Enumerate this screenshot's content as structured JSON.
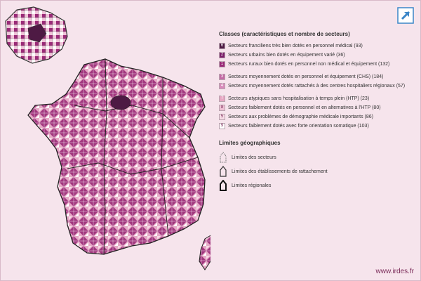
{
  "legend": {
    "title": "Classes (caractéristiques et nombre de secteurs)",
    "groups": [
      [
        {
          "num": "6",
          "label": "Secteurs franciliens très bien dotés en personnel médical (93)",
          "color": "#4e1a44"
        },
        {
          "num": "2",
          "label": "Secteurs urbains bien dotés en équipement varié (36)",
          "color": "#7c1f6a"
        },
        {
          "num": "1",
          "label": "Secteurs ruraux bien dotés en personnel non médical et équipement (132)",
          "color": "#9a2a78"
        }
      ],
      [
        {
          "num": "3",
          "label": "Secteurs moyennement dotés en personnel et équipement (CHS) (184)",
          "color": "#c46aa5"
        },
        {
          "num": "4",
          "label": "Secteurs moyennement dotés rattachés à des centres hospitaliers régionaux (57)",
          "color": "#d88bbb"
        }
      ],
      [
        {
          "num": "7",
          "label": "Secteurs atypiques sans hospitalisation à temps plein (HTP) (23)",
          "color": "#e7a7c3"
        },
        {
          "num": "8",
          "label": "Secteurs faiblement dotés en personnel et en alternatives à l'HTP (80)",
          "color": "#efc0d4"
        },
        {
          "num": "5",
          "label": "Secteurs aux problèmes de démographie médicale importants (86)",
          "color": "#f7dbe6"
        },
        {
          "num": "9",
          "label": "Secteurs faiblement dotés avec forte orientation somatique (103)",
          "color": "#ffffff"
        }
      ]
    ]
  },
  "geo": {
    "title": "Limites géographiques",
    "items": [
      "Limites des secteurs",
      "Limites des établissements de rattachement",
      "Limites régionales"
    ]
  },
  "site": "www.irdes.fr",
  "expand_icon": "expand-arrow-icon",
  "colors": {
    "accent": "#3b86c8",
    "background": "#f6e4ec"
  }
}
